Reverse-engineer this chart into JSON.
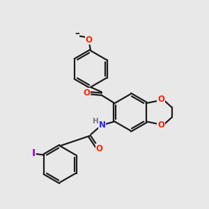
{
  "background_color": "#e8e8e8",
  "bond_color": "#1a1a1a",
  "bond_width": 1.6,
  "dbo": 0.055,
  "atom_colors": {
    "O": "#ff2200",
    "N": "#2222ff",
    "I": "#9900cc",
    "H": "#777777",
    "C": "#1a1a1a"
  },
  "font_size": 8.5,
  "fig_width": 3.0,
  "fig_height": 3.0,
  "dpi": 100,
  "bg": "#e8e8e8"
}
